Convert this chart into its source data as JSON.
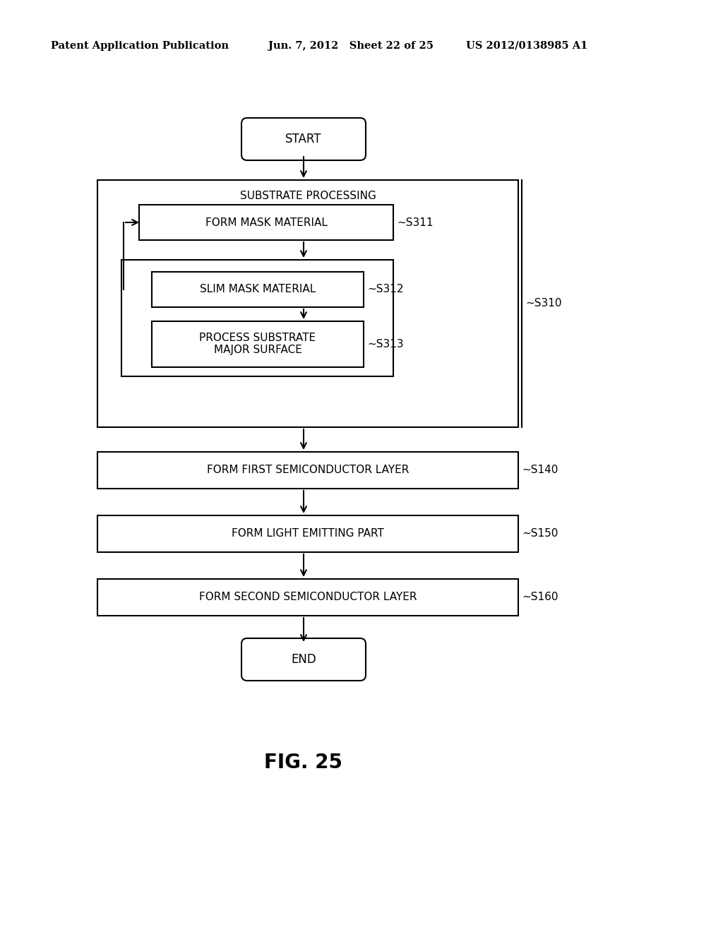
{
  "bg_color": "#ffffff",
  "text_color": "#000000",
  "header_left": "Patent Application Publication",
  "header_mid": "Jun. 7, 2012   Sheet 22 of 25",
  "header_right": "US 2012/0138985 A1",
  "figure_label": "FIG. 25",
  "start_label": "START",
  "end_label": "END",
  "fig_width": 10.24,
  "fig_height": 13.2,
  "dpi": 100
}
